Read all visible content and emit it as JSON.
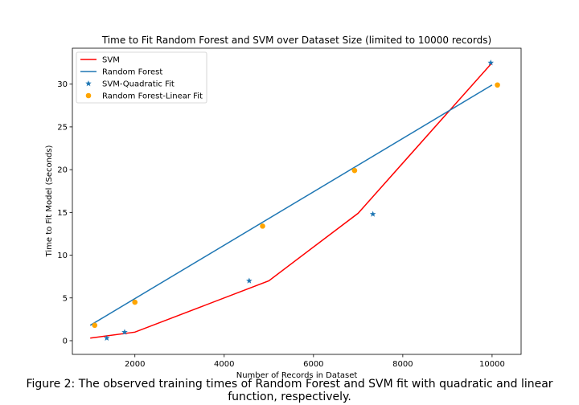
{
  "chart_data": {
    "type": "line",
    "title": "Time to Fit Random Forest and SVM over Dataset Size (limited to 10000 records)",
    "xlabel": "Number of Records in Dataset",
    "ylabel": "Time to Fit Model (Seconds)",
    "xlim": [
      600,
      10650
    ],
    "ylim": [
      -1.6,
      34.2
    ],
    "xticks": [
      2000,
      4000,
      6000,
      8000,
      10000
    ],
    "yticks": [
      0,
      5,
      10,
      15,
      20,
      25,
      30
    ],
    "grid": false,
    "legend_position": "upper-left",
    "series": [
      {
        "name": "SVM",
        "kind": "line",
        "color": "#ff0000",
        "x": [
          1000,
          2000,
          5000,
          7000,
          10000
        ],
        "y": [
          0.3,
          1.0,
          7.0,
          14.9,
          32.5
        ]
      },
      {
        "name": "Random Forest",
        "kind": "line",
        "color": "#1f77b4",
        "x": [
          1000,
          10000
        ],
        "y": [
          1.8,
          29.9
        ]
      },
      {
        "name": "SVM-Quadratic Fit",
        "kind": "scatter",
        "marker": "star",
        "color": "#1f77b4",
        "x": [
          1370,
          1770,
          4560,
          7330,
          9970
        ],
        "y": [
          0.3,
          1.0,
          7.0,
          14.8,
          32.5
        ]
      },
      {
        "name": "Random Forest-Linear Fit",
        "kind": "scatter",
        "marker": "circle",
        "color": "#ffa500",
        "x": [
          1100,
          2000,
          4860,
          6920,
          10120
        ],
        "y": [
          1.8,
          4.5,
          13.4,
          19.9,
          29.9
        ]
      }
    ]
  },
  "caption": "Figure 2: The observed training times of Random Forest and SVM fit with quadratic and linear function, respectively."
}
